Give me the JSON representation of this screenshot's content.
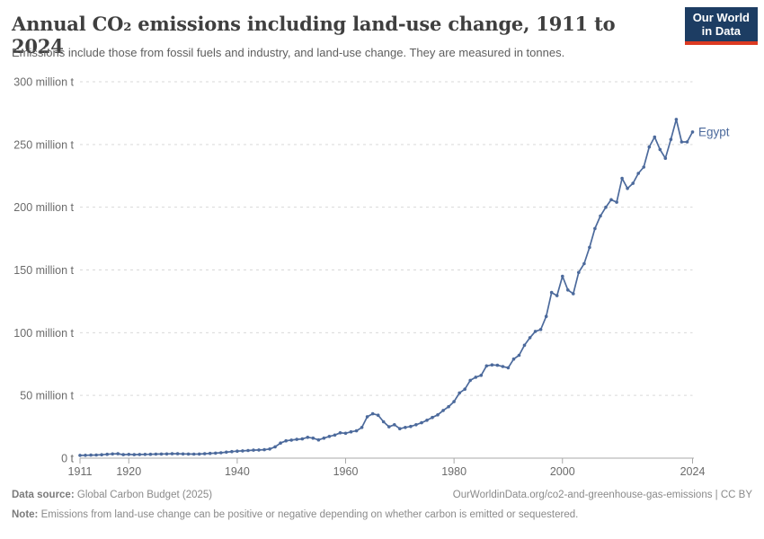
{
  "header": {
    "title": "Annual CO₂ emissions including land-use change, 1911 to 2024",
    "subtitle": "Emissions include those from fossil fuels and industry, and land-use change. They are measured in tonnes."
  },
  "logo": {
    "line1": "Our World",
    "line2": "in Data",
    "navy": "#1d3d63",
    "red": "#dc3a22"
  },
  "footer": {
    "source_label": "Data source:",
    "source_value": "Global Carbon Budget (2025)",
    "link": "OurWorldinData.org/co2-and-greenhouse-gas-emissions | CC BY",
    "note_label": "Note:",
    "note_text": "Emissions from land-use change can be positive or negative depending on whether carbon is emitted or sequestered."
  },
  "chart_data": {
    "type": "line",
    "title": "Annual CO₂ emissions including land-use change, 1911 to 2024",
    "unit": "tonnes",
    "xlim": [
      1911,
      2024
    ],
    "ylim": [
      0,
      300000000
    ],
    "grid": "horizontal-dashed",
    "legend": "end-of-line-label",
    "x_ticks": [
      1911,
      1920,
      1940,
      1960,
      1980,
      2000,
      2024
    ],
    "y_ticks": [
      {
        "value": 0,
        "label": "0 t"
      },
      {
        "value": 50,
        "label": "50 million t"
      },
      {
        "value": 100,
        "label": "100 million t"
      },
      {
        "value": 150,
        "label": "150 million t"
      },
      {
        "value": 200,
        "label": "200 million t"
      },
      {
        "value": 250,
        "label": "250 million t"
      },
      {
        "value": 300,
        "label": "300 million t"
      }
    ],
    "y_unit_millions": true,
    "line_color": "#4c6a9c",
    "grid_color": "#d9d9d9",
    "axis_color": "#a9a9a9",
    "tick_label_color": "#6b6b6b",
    "series": [
      {
        "name": "Egypt",
        "start_year": 1911,
        "end_year": 2024,
        "values_million_t": [
          2.2,
          2.3,
          2.4,
          2.5,
          2.7,
          3.1,
          3.4,
          3.5,
          2.8,
          3.0,
          2.8,
          2.9,
          3.0,
          3.1,
          3.2,
          3.3,
          3.4,
          3.5,
          3.5,
          3.4,
          3.3,
          3.2,
          3.3,
          3.5,
          3.8,
          4.0,
          4.3,
          4.8,
          5.2,
          5.6,
          5.8,
          6.1,
          6.4,
          6.5,
          6.7,
          7.3,
          9.0,
          12.0,
          13.8,
          14.4,
          15.0,
          15.3,
          16.6,
          16.0,
          14.5,
          16.0,
          17.3,
          18.4,
          20.2,
          19.8,
          21.0,
          21.8,
          24.5,
          33.0,
          35.4,
          34.2,
          29.0,
          25.0,
          26.6,
          23.5,
          24.5,
          25.3,
          26.6,
          28.2,
          30.2,
          32.4,
          34.5,
          38.0,
          41.0,
          45.0,
          52.0,
          55.0,
          62.0,
          64.5,
          66.0,
          73.5,
          74.3,
          74.0,
          73.0,
          72.0,
          79.0,
          82.0,
          90.0,
          96.0,
          101.0,
          102.5,
          113.0,
          132.0,
          129.5,
          145.0,
          134.0,
          131.0,
          148.0,
          155.0,
          168.0,
          183.0,
          193.0,
          200.0,
          206.0,
          204.0,
          223.0,
          215.0,
          219.0,
          227.0,
          232.0,
          248.0,
          256.0,
          246.0,
          239.0,
          254.0,
          270.0,
          252.0,
          252.0,
          260.0
        ]
      }
    ]
  }
}
